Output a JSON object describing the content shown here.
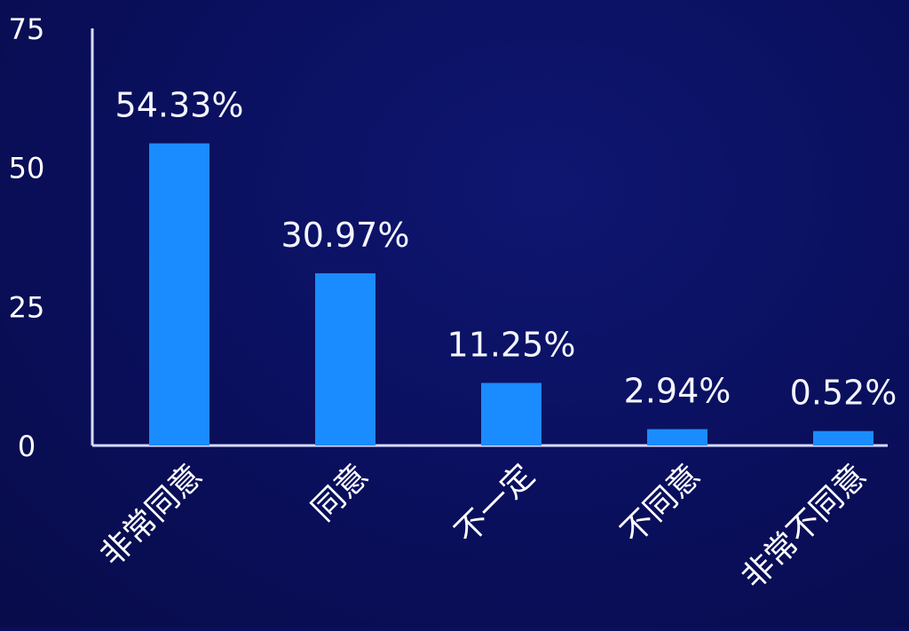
{
  "chart_data": {
    "type": "bar",
    "categories": [
      "非常同意",
      "同意",
      "不一定",
      "不同意",
      "非常不同意"
    ],
    "values": [
      54.33,
      30.97,
      11.25,
      2.94,
      0.52
    ],
    "data_labels": [
      "54.33%",
      "30.97%",
      "11.25%",
      "2.94%",
      "0.52%"
    ],
    "yticks": [
      0,
      25,
      50,
      75
    ],
    "ylim": [
      0,
      75
    ],
    "title": "",
    "xlabel": "",
    "ylabel": "",
    "grid": false,
    "legend": "none",
    "colors": {
      "bar": "#1a8cff",
      "axis": "#d8dcff",
      "text": "#ffffff",
      "background": "#0a0f5a"
    }
  }
}
